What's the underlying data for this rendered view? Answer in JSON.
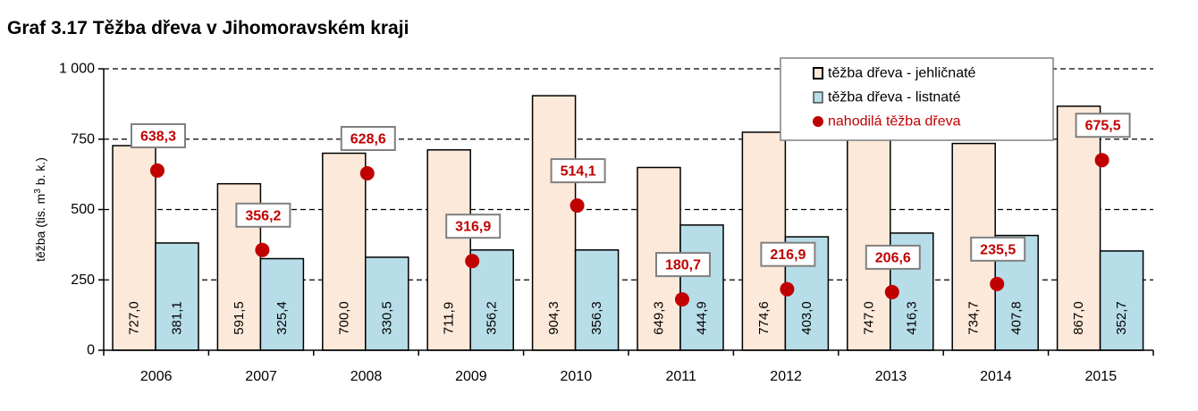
{
  "chart_data": {
    "type": "bar",
    "title": "Graf 3.17 Těžba dřeva v Jihomoravském kraji",
    "ylabel": "těžba (tis. m³ b. k.)",
    "ylabel_parts": [
      "těžba (tis. m",
      "3",
      " b. k.)"
    ],
    "xlabel": "",
    "ylim": [
      0,
      1000
    ],
    "yticks": [
      0,
      250,
      500,
      750,
      1000
    ],
    "ytick_labels": [
      "0",
      "250",
      "500",
      "750",
      "1 000"
    ],
    "grid": "dashed horizontal at 250, 750, 1000",
    "legend_position": "top-right",
    "categories": [
      "2006",
      "2007",
      "2008",
      "2009",
      "2010",
      "2011",
      "2012",
      "2013",
      "2014",
      "2015"
    ],
    "series": [
      {
        "name": "těžba dřeva - jehličnaté",
        "type": "bar",
        "color": "#FDE9D9",
        "values": [
          727.0,
          591.5,
          700.0,
          711.9,
          904.3,
          649.3,
          774.6,
          747.0,
          734.7,
          867.0
        ],
        "labels": [
          "727,0",
          "591,5",
          "700,0",
          "711,9",
          "904,3",
          "649,3",
          "774,6",
          "747,0",
          "734,7",
          "867,0"
        ]
      },
      {
        "name": "těžba dřeva - listnaté",
        "type": "bar",
        "color": "#B7DDE8",
        "values": [
          381.1,
          325.4,
          330.5,
          356.2,
          356.3,
          444.9,
          403.0,
          416.3,
          407.8,
          352.7
        ],
        "labels": [
          "381,1",
          "325,4",
          "330,5",
          "356,2",
          "356,3",
          "444,9",
          "403,0",
          "416,3",
          "407,8",
          "352,7"
        ]
      },
      {
        "name": "nahodilá těžba dřeva",
        "type": "scatter",
        "color": "#C00000",
        "values": [
          638.3,
          356.2,
          628.6,
          316.9,
          514.1,
          180.7,
          216.9,
          206.6,
          235.5,
          675.5
        ],
        "labels": [
          "638,3",
          "356,2",
          "628,6",
          "316,9",
          "514,1",
          "180,7",
          "216,9",
          "206,6",
          "235,5",
          "675,5"
        ]
      }
    ]
  }
}
